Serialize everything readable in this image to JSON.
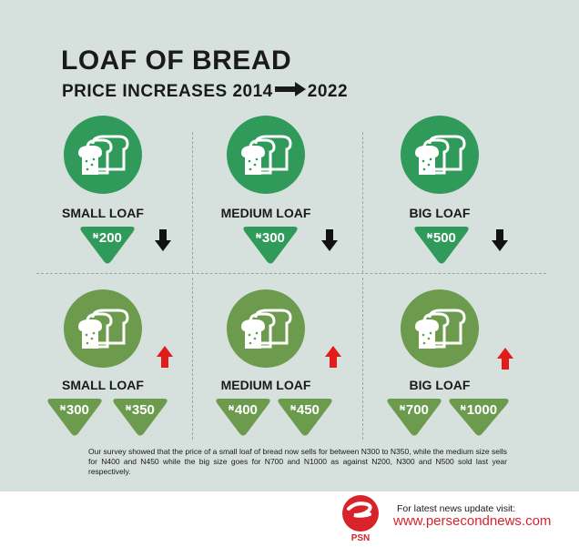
{
  "header": {
    "title": "LOAF OF BREAD",
    "subtitle_prefix": "PRICE INCREASES 2014",
    "subtitle_suffix": "2022"
  },
  "top_row": [
    {
      "label": "SMALL LOAF",
      "currency": "₦",
      "price": "200"
    },
    {
      "label": "MEDIUM LOAF",
      "currency": "₦",
      "price": "300"
    },
    {
      "label": "BIG LOAF",
      "currency": "₦",
      "price": "500"
    }
  ],
  "bottom_row": [
    {
      "label": "SMALL LOAF",
      "prices": [
        {
          "currency": "₦",
          "value": "300"
        },
        {
          "currency": "₦",
          "value": "350"
        }
      ]
    },
    {
      "label": "MEDIUM LOAF",
      "prices": [
        {
          "currency": "₦",
          "value": "400"
        },
        {
          "currency": "₦",
          "value": "450"
        }
      ]
    },
    {
      "label": "BIG LOAF",
      "prices": [
        {
          "currency": "₦",
          "value": "700"
        },
        {
          "currency": "₦",
          "value": "1000"
        }
      ]
    }
  ],
  "caption": "Our survey showed that the price of a small loaf of bread now sells for between N300 to N350, while the medium size sells for N400 and N450 while the big size goes for N700 and N1000 as against N200, N300 and N500 sold last year respectively.",
  "footer": {
    "logo_text": "PSN",
    "visit_text": "For latest news update visit:",
    "url": "www.persecondnews.com"
  },
  "colors": {
    "background": "#d6e0dc",
    "top_green": "#2f9a5a",
    "bottom_green": "#6c9b4d",
    "down_arrow": "#111111",
    "up_arrow": "#e21b1b",
    "brand_red": "#d8232a"
  },
  "icons": {
    "bread": "bread-loaf-icon",
    "down": "down-arrow-icon",
    "up": "up-arrow-icon",
    "title_arrow": "right-arrow-icon"
  }
}
